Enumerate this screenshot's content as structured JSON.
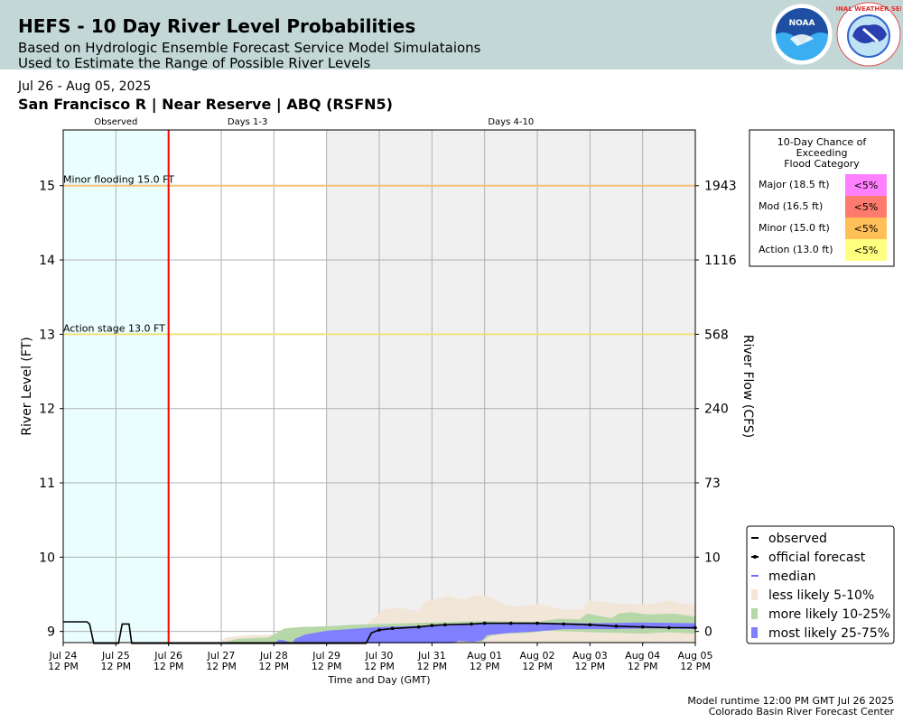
{
  "header": {
    "title": "HEFS - 10 Day River Level Probabilities",
    "subtitle_line1": "Based on Hydrologic Ensemble Forecast Service Model Simulataions",
    "subtitle_line2": "Used to Estimate the Range of Possible River Levels",
    "noaa_logo_text": "NOAA",
    "nws_logo_text": "NATIONAL WEATHER SERVICE"
  },
  "date_range": "Jul 26 - Aug 05, 2025",
  "gauge_title": "San Francisco R | Near Reserve | ABQ (RSFN5)",
  "footer": {
    "runtime": "Model runtime 12:00 PM GMT Jul 26 2025",
    "center": "Colorado Basin River Forecast Center"
  },
  "colors": {
    "observed_bg": "#ebfefe",
    "days4_bg": "#f0f0f0",
    "now_line": "#ff0000",
    "minor_line": "#f5c07a",
    "action_line": "#f3e27a",
    "less_likely": "#f2e6d9",
    "more_likely": "#b6d7a8",
    "most_likely": "#7f7fff",
    "median": "#6f6fff",
    "observed": "#000000",
    "forecast": "#000000"
  },
  "chart_data": {
    "type": "area",
    "period_labels": [
      "Observed",
      "Days 1-3",
      "Days 4-10"
    ],
    "xlabel": "Time and Day (GMT)",
    "ylabel": "River Level (FT)",
    "y2label": "River Flow (CFS)",
    "xlim": [
      0,
      12
    ],
    "ylim": [
      8.85,
      15.75
    ],
    "x_ticks": [
      {
        "line1": "Jul 24",
        "line2": "12 PM"
      },
      {
        "line1": "Jul 25",
        "line2": "12 PM"
      },
      {
        "line1": "Jul 26",
        "line2": "12 PM"
      },
      {
        "line1": "Jul 27",
        "line2": "12 PM"
      },
      {
        "line1": "Jul 28",
        "line2": "12 PM"
      },
      {
        "line1": "Jul 29",
        "line2": "12 PM"
      },
      {
        "line1": "Jul 30",
        "line2": "12 PM"
      },
      {
        "line1": "Jul 31",
        "line2": "12 PM"
      },
      {
        "line1": "Aug 01",
        "line2": "12 PM"
      },
      {
        "line1": "Aug 02",
        "line2": "12 PM"
      },
      {
        "line1": "Aug 03",
        "line2": "12 PM"
      },
      {
        "line1": "Aug 04",
        "line2": "12 PM"
      },
      {
        "line1": "Aug 05",
        "line2": "12 PM"
      }
    ],
    "y_ticks": [
      9,
      10,
      11,
      12,
      13,
      14,
      15
    ],
    "flow_ticks": [
      {
        "level": 9,
        "label": "0"
      },
      {
        "level": 10,
        "label": "10"
      },
      {
        "level": 11,
        "label": "73"
      },
      {
        "level": 12,
        "label": "240"
      },
      {
        "level": 13,
        "label": "568"
      },
      {
        "level": 14,
        "label": "1116"
      },
      {
        "level": 15,
        "label": "1943"
      }
    ],
    "thresholds": [
      {
        "name": "minor",
        "label": "Minor flooding 15.0 FT",
        "value": 15.0
      },
      {
        "name": "action",
        "label": "Action stage 13.0 FT",
        "value": 13.0
      }
    ],
    "forecast_start_day": 2,
    "days4_start_day": 5,
    "observed": [
      [
        0,
        9.13
      ],
      [
        0.45,
        9.13
      ],
      [
        0.5,
        9.1
      ],
      [
        0.58,
        8.84
      ],
      [
        1.05,
        8.84
      ],
      [
        1.12,
        9.1
      ],
      [
        1.25,
        9.1
      ],
      [
        1.3,
        8.84
      ],
      [
        2,
        8.84
      ]
    ],
    "official_forecast": [
      [
        2,
        8.84
      ],
      [
        5.75,
        8.84
      ],
      [
        5.85,
        8.98
      ],
      [
        6,
        9.02
      ],
      [
        6.25,
        9.04
      ],
      [
        6.75,
        9.06
      ],
      [
        7,
        9.08
      ],
      [
        7.25,
        9.09
      ],
      [
        7.75,
        9.1
      ],
      [
        8,
        9.11
      ],
      [
        8.5,
        9.11
      ],
      [
        9,
        9.11
      ],
      [
        9.5,
        9.1
      ],
      [
        10,
        9.09
      ],
      [
        10.5,
        9.07
      ],
      [
        11,
        9.06
      ],
      [
        11.5,
        9.05
      ],
      [
        12,
        9.05
      ]
    ],
    "median": [
      [
        2,
        8.84
      ],
      [
        5.75,
        8.84
      ],
      [
        5.85,
        8.98
      ],
      [
        6,
        9.03
      ],
      [
        6.5,
        9.05
      ],
      [
        7,
        9.07
      ],
      [
        8,
        9.1
      ],
      [
        9,
        9.1
      ],
      [
        10,
        9.08
      ],
      [
        11,
        9.06
      ],
      [
        12,
        9.05
      ]
    ],
    "bands": [
      {
        "name": "less likely 5-10%",
        "color_key": "less_likely",
        "upper": [
          [
            2.9,
            8.84
          ],
          [
            3.1,
            8.92
          ],
          [
            3.5,
            8.95
          ],
          [
            4,
            8.96
          ],
          [
            5,
            9.02
          ],
          [
            5.75,
            9.1
          ],
          [
            6.1,
            9.3
          ],
          [
            6.4,
            9.32
          ],
          [
            6.75,
            9.27
          ],
          [
            6.85,
            9.4
          ],
          [
            7.3,
            9.48
          ],
          [
            7.6,
            9.43
          ],
          [
            7.85,
            9.49
          ],
          [
            8.1,
            9.47
          ],
          [
            8.35,
            9.37
          ],
          [
            8.6,
            9.33
          ],
          [
            8.75,
            9.35
          ],
          [
            9,
            9.37
          ],
          [
            9.5,
            9.3
          ],
          [
            9.85,
            9.3
          ],
          [
            10,
            9.42
          ],
          [
            10.5,
            9.38
          ],
          [
            10.9,
            9.36
          ],
          [
            11.25,
            9.38
          ],
          [
            11.5,
            9.42
          ],
          [
            11.8,
            9.37
          ],
          [
            12,
            9.36
          ]
        ],
        "lower": [
          [
            2.9,
            8.84
          ],
          [
            11.05,
            8.84
          ],
          [
            11.3,
            8.86
          ],
          [
            11.5,
            8.87
          ],
          [
            11.9,
            8.86
          ],
          [
            12,
            8.84
          ]
        ]
      },
      {
        "name": "more likely 10-25%",
        "color_key": "more_likely",
        "upper": [
          [
            3.0,
            8.84
          ],
          [
            3.3,
            8.9
          ],
          [
            3.9,
            8.92
          ],
          [
            4.2,
            9.04
          ],
          [
            4.5,
            9.06
          ],
          [
            5,
            9.07
          ],
          [
            5.5,
            9.09
          ],
          [
            6,
            9.1
          ],
          [
            7,
            9.12
          ],
          [
            8,
            9.14
          ],
          [
            9,
            9.13
          ],
          [
            9.4,
            9.17
          ],
          [
            9.8,
            9.16
          ],
          [
            9.95,
            9.24
          ],
          [
            10.4,
            9.18
          ],
          [
            10.55,
            9.24
          ],
          [
            10.75,
            9.26
          ],
          [
            11.1,
            9.23
          ],
          [
            11.6,
            9.24
          ],
          [
            12,
            9.2
          ]
        ],
        "lower": [
          [
            3.0,
            8.84
          ],
          [
            7.4,
            8.84
          ],
          [
            7.55,
            8.88
          ],
          [
            7.95,
            8.86
          ],
          [
            8.1,
            8.94
          ],
          [
            8.35,
            8.97
          ],
          [
            8.85,
            8.98
          ],
          [
            9.15,
            9.01
          ],
          [
            9.6,
            9.0
          ],
          [
            10,
            8.99
          ],
          [
            10.5,
            8.98
          ],
          [
            11,
            8.97
          ],
          [
            11.5,
            8.99
          ],
          [
            12,
            8.97
          ]
        ]
      },
      {
        "name": "most likely 25-75%",
        "color_key": "most_likely",
        "upper": [
          [
            4.0,
            8.84
          ],
          [
            4.1,
            8.89
          ],
          [
            4.2,
            8.88
          ],
          [
            4.35,
            8.84
          ],
          [
            4.4,
            8.9
          ],
          [
            4.6,
            8.96
          ],
          [
            5,
            9.01
          ],
          [
            6,
            9.06
          ],
          [
            7,
            9.08
          ],
          [
            8,
            9.1
          ],
          [
            9,
            9.12
          ],
          [
            10,
            9.11
          ],
          [
            11,
            9.12
          ],
          [
            12,
            9.11
          ]
        ],
        "lower": [
          [
            4.0,
            8.84
          ],
          [
            7.4,
            8.84
          ],
          [
            7.5,
            8.87
          ],
          [
            7.8,
            8.86
          ],
          [
            7.95,
            8.88
          ],
          [
            8.05,
            8.95
          ],
          [
            8.5,
            8.98
          ],
          [
            9,
            9.0
          ],
          [
            9.5,
            9.03
          ],
          [
            10,
            9.03
          ],
          [
            10.5,
            9.03
          ],
          [
            11,
            9.04
          ],
          [
            11.5,
            9.04
          ],
          [
            12,
            9.03
          ]
        ]
      }
    ],
    "legend": {
      "placement": "lower-right",
      "items": [
        {
          "label": "observed",
          "kind": "line",
          "color_key": "observed"
        },
        {
          "label": "official forecast",
          "kind": "dotline",
          "color_key": "forecast"
        },
        {
          "label": "median",
          "kind": "dash",
          "color_key": "median"
        },
        {
          "label": "less likely 5-10%",
          "kind": "patch",
          "color_key": "less_likely"
        },
        {
          "label": "more likely 10-25%",
          "kind": "patch",
          "color_key": "more_likely"
        },
        {
          "label": "most likely 25-75%",
          "kind": "patch",
          "color_key": "most_likely"
        }
      ]
    },
    "exceedance_table": {
      "title": [
        "10-Day Chance of",
        "Exceeding",
        "Flood Category"
      ],
      "rows": [
        {
          "category": "Major (18.5 ft)",
          "chance": "<5%",
          "color": "#ff80ff"
        },
        {
          "category": "Mod (16.5 ft)",
          "chance": "<5%",
          "color": "#ff7a6e"
        },
        {
          "category": "Minor (15.0 ft)",
          "chance": "<5%",
          "color": "#ffbf59"
        },
        {
          "category": "Action (13.0 ft)",
          "chance": "<5%",
          "color": "#ffff80"
        }
      ]
    }
  }
}
